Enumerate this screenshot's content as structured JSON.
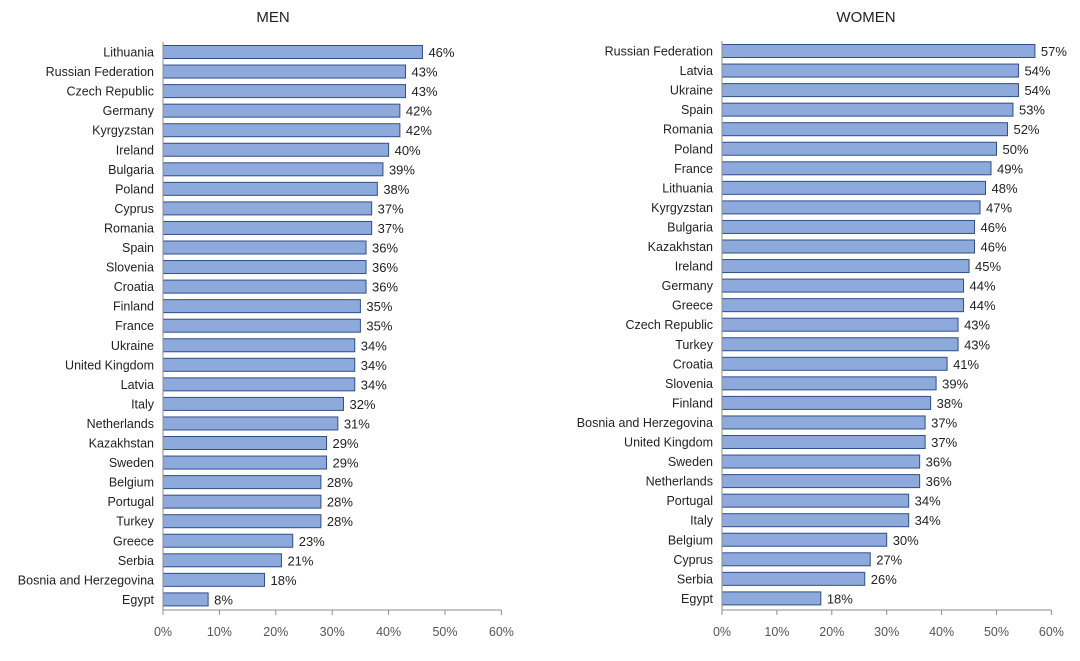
{
  "chart_data": [
    {
      "type": "bar",
      "orientation": "horizontal",
      "title": "MEN",
      "xlim": [
        0,
        60
      ],
      "xticks": [
        "0%",
        "10%",
        "20%",
        "30%",
        "40%",
        "50%",
        "60%"
      ],
      "value_format": "percent",
      "grid": false,
      "bar_color": "#8EA9DB",
      "bar_edge_color": "#2F4F8A",
      "categories": [
        "Lithuania",
        "Russian Federation",
        "Czech Republic",
        "Germany",
        "Kyrgyzstan",
        "Ireland",
        "Bulgaria",
        "Poland",
        "Cyprus",
        "Romania",
        "Spain",
        "Slovenia",
        "Croatia",
        "Finland",
        "France",
        "Ukraine",
        "United Kingdom",
        "Latvia",
        "Italy",
        "Netherlands",
        "Kazakhstan",
        "Sweden",
        "Belgium",
        "Portugal",
        "Turkey",
        "Greece",
        "Serbia",
        "Bosnia and Herzegovina",
        "Egypt"
      ],
      "values": [
        46,
        43,
        43,
        42,
        42,
        40,
        39,
        38,
        37,
        37,
        36,
        36,
        36,
        35,
        35,
        34,
        34,
        34,
        32,
        31,
        29,
        29,
        28,
        28,
        28,
        23,
        21,
        18,
        8
      ],
      "labels": [
        "46%",
        "43%",
        "43%",
        "42%",
        "42%",
        "40%",
        "39%",
        "38%",
        "37%",
        "37%",
        "36%",
        "36%",
        "36%",
        "35%",
        "35%",
        "34%",
        "34%",
        "34%",
        "32%",
        "31%",
        "29%",
        "29%",
        "28%",
        "28%",
        "28%",
        "23%",
        "21%",
        "18%",
        "8%"
      ]
    },
    {
      "type": "bar",
      "orientation": "horizontal",
      "title": "WOMEN",
      "xlim": [
        0,
        60
      ],
      "xticks": [
        "0%",
        "10%",
        "20%",
        "30%",
        "40%",
        "50%",
        "60%"
      ],
      "value_format": "percent",
      "grid": false,
      "bar_color": "#8EA9DB",
      "bar_edge_color": "#2F4F8A",
      "categories": [
        "Russian Federation",
        "Latvia",
        "Ukraine",
        "Spain",
        "Romania",
        "Poland",
        "France",
        "Lithuania",
        "Kyrgyzstan",
        "Bulgaria",
        "Kazakhstan",
        "Ireland",
        "Germany",
        "Greece",
        "Czech Republic",
        "Turkey",
        "Croatia",
        "Slovenia",
        "Finland",
        "Bosnia and Herzegovina",
        "United Kingdom",
        "Sweden",
        "Netherlands",
        "Portugal",
        "Italy",
        "Belgium",
        "Cyprus",
        "Serbia",
        "Egypt"
      ],
      "values": [
        57,
        54,
        54,
        53,
        52,
        50,
        49,
        48,
        47,
        46,
        46,
        45,
        44,
        44,
        43,
        43,
        41,
        39,
        38,
        37,
        37,
        36,
        36,
        34,
        34,
        30,
        27,
        26,
        18
      ],
      "labels": [
        "57%",
        "54%",
        "54%",
        "53%",
        "52%",
        "50%",
        "49%",
        "48%",
        "47%",
        "46%",
        "46%",
        "45%",
        "44%",
        "44%",
        "43%",
        "43%",
        "41%",
        "39%",
        "38%",
        "37%",
        "37%",
        "36%",
        "36%",
        "34%",
        "34%",
        "30%",
        "27%",
        "26%",
        "18%"
      ]
    }
  ]
}
